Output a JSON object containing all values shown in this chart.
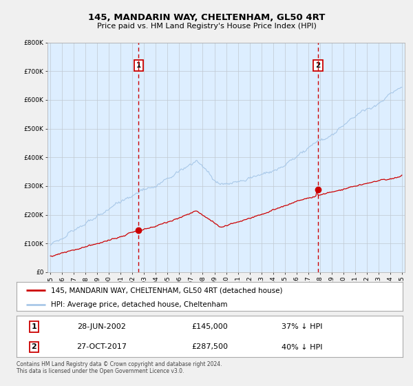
{
  "title": "145, MANDARIN WAY, CHELTENHAM, GL50 4RT",
  "subtitle": "Price paid vs. HM Land Registry's House Price Index (HPI)",
  "hpi_label": "HPI: Average price, detached house, Cheltenham",
  "property_label": "145, MANDARIN WAY, CHELTENHAM, GL50 4RT (detached house)",
  "sale1_date": "28-JUN-2002",
  "sale1_price": 145000,
  "sale1_pct": "37%",
  "sale2_date": "27-OCT-2017",
  "sale2_price": 287500,
  "sale2_pct": "40%",
  "hpi_color": "#a8c8e8",
  "property_color": "#cc0000",
  "vline_color": "#cc0000",
  "bg_color": "#ddeeff",
  "plot_bg": "#f0f4f8",
  "ylim_max": 800000,
  "legend_box_color": "#cc0000",
  "footer1": "Contains HM Land Registry data © Crown copyright and database right 2024.",
  "footer2": "This data is licensed under the Open Government Licence v3.0."
}
